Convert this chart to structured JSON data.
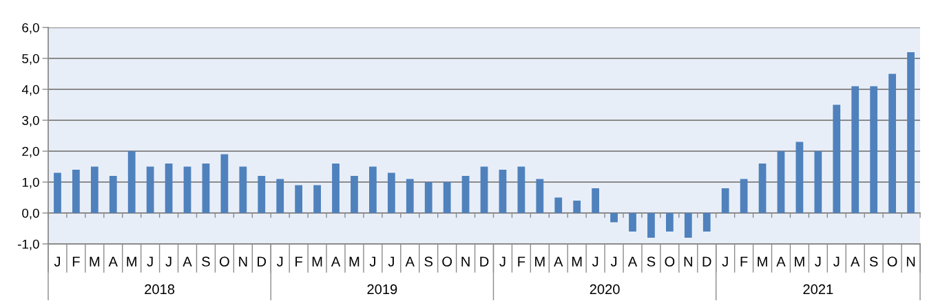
{
  "chart_data": {
    "type": "bar",
    "categories": [
      "J",
      "F",
      "M",
      "A",
      "M",
      "J",
      "J",
      "A",
      "S",
      "O",
      "N",
      "D",
      "J",
      "F",
      "M",
      "A",
      "M",
      "J",
      "J",
      "A",
      "S",
      "O",
      "N",
      "D",
      "J",
      "F",
      "M",
      "A",
      "M",
      "J",
      "J",
      "A",
      "S",
      "O",
      "N",
      "D",
      "J",
      "F",
      "M",
      "A",
      "M",
      "J",
      "J",
      "A",
      "S",
      "O",
      "N"
    ],
    "values": [
      1.3,
      1.4,
      1.5,
      1.2,
      2.0,
      1.5,
      1.6,
      1.5,
      1.6,
      1.9,
      1.5,
      1.2,
      1.1,
      0.9,
      0.9,
      1.6,
      1.2,
      1.5,
      1.3,
      1.1,
      1.0,
      1.0,
      1.2,
      1.5,
      1.4,
      1.5,
      1.1,
      0.5,
      0.4,
      0.8,
      -0.3,
      -0.6,
      -0.8,
      -0.6,
      -0.8,
      -0.6,
      0.8,
      1.1,
      1.6,
      2.0,
      2.3,
      2.0,
      3.5,
      4.1,
      4.1,
      4.5,
      5.2
    ],
    "color": "#4f81bd",
    "ylim": [
      -1,
      6
    ],
    "yticks": [
      {
        "value": -1,
        "label": "-1,0"
      },
      {
        "value": 0,
        "label": "0,0"
      },
      {
        "value": 1,
        "label": "1,0"
      },
      {
        "value": 2,
        "label": "2,0"
      },
      {
        "value": 3,
        "label": "3,0"
      },
      {
        "value": 4,
        "label": "4,0"
      },
      {
        "value": 5,
        "label": "5,0"
      },
      {
        "value": 6,
        "label": "6,0"
      }
    ],
    "grid": "y",
    "annotations": [
      "2018",
      "2019",
      "2020",
      "2021"
    ]
  }
}
